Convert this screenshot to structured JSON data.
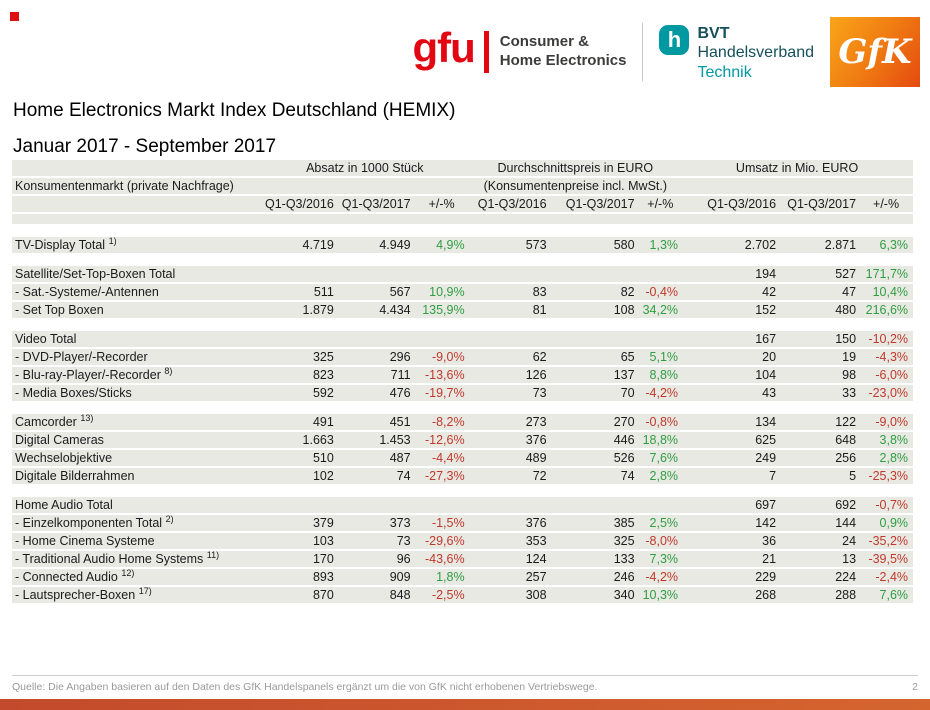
{
  "logos": {
    "gfu": {
      "name": "gfu",
      "line1": "Consumer &",
      "line2": "Home Electronics"
    },
    "bvt": {
      "icon": "h",
      "line1": "BVT",
      "line2": "Handelsverband",
      "line3": "Technik"
    },
    "gfk": {
      "name": "GfK"
    }
  },
  "title": "Home Electronics Markt Index Deutschland (HEMIX)",
  "subtitle": "Januar 2017 - September 2017",
  "colors": {
    "positive": "#2f9e41",
    "negative": "#c0392b",
    "band": "#e9e9e4",
    "gfu_red": "#e30613",
    "bvt_teal": "#0098a1",
    "gfk_orange": "#ee7011",
    "bottom_bar": "#c94f2d"
  },
  "table": {
    "market_label": "Konsumentenmarkt (private Nachfrage)",
    "groups": [
      "Absatz in 1000 Stück",
      "Durchschnittspreis in EURO",
      "Umsatz in Mio. EURO"
    ],
    "preis_note": "(Konsumentenpreise incl. MwSt.)",
    "col_headers": [
      "Q1-Q3/2016",
      "Q1-Q3/2017",
      "+/-%"
    ],
    "rows": [
      {
        "type": "empty"
      },
      {
        "type": "spacer"
      },
      {
        "label": "TV-Display Total",
        "sup": "1)",
        "values": [
          "4.719",
          "4.949",
          "4,9%",
          "573",
          "580",
          "1,3%",
          "2.702",
          "2.871",
          "6,3%"
        ]
      },
      {
        "type": "spacer"
      },
      {
        "label": "Satellite/Set-Top-Boxen Total",
        "values": [
          "",
          "",
          "",
          "",
          "",
          "",
          "194",
          "527",
          "171,7%"
        ]
      },
      {
        "label": "- Sat.-Systeme/-Antennen",
        "values": [
          "511",
          "567",
          "10,9%",
          "83",
          "82",
          "-0,4%",
          "42",
          "47",
          "10,4%"
        ]
      },
      {
        "label": "- Set Top Boxen",
        "values": [
          "1.879",
          "4.434",
          "135,9%",
          "81",
          "108",
          "34,2%",
          "152",
          "480",
          "216,6%"
        ]
      },
      {
        "type": "spacer"
      },
      {
        "label": "Video Total",
        "values": [
          "",
          "",
          "",
          "",
          "",
          "",
          "167",
          "150",
          "-10,2%"
        ]
      },
      {
        "label": "- DVD-Player/-Recorder",
        "values": [
          "325",
          "296",
          "-9,0%",
          "62",
          "65",
          "5,1%",
          "20",
          "19",
          "-4,3%"
        ]
      },
      {
        "label": "- Blu-ray-Player/-Recorder",
        "sup": "8)",
        "values": [
          "823",
          "711",
          "-13,6%",
          "126",
          "137",
          "8,8%",
          "104",
          "98",
          "-6,0%"
        ]
      },
      {
        "label": "- Media Boxes/Sticks",
        "values": [
          "592",
          "476",
          "-19,7%",
          "73",
          "70",
          "-4,2%",
          "43",
          "33",
          "-23,0%"
        ]
      },
      {
        "type": "spacer"
      },
      {
        "label": "Camcorder",
        "sup": "13)",
        "values": [
          "491",
          "451",
          "-8,2%",
          "273",
          "270",
          "-0,8%",
          "134",
          "122",
          "-9,0%"
        ]
      },
      {
        "label": "Digital Cameras",
        "values": [
          "1.663",
          "1.453",
          "-12,6%",
          "376",
          "446",
          "18,8%",
          "625",
          "648",
          "3,8%"
        ]
      },
      {
        "label": "Wechselobjektive",
        "values": [
          "510",
          "487",
          "-4,4%",
          "489",
          "526",
          "7,6%",
          "249",
          "256",
          "2,8%"
        ]
      },
      {
        "label": "Digitale Bilderrahmen",
        "values": [
          "102",
          "74",
          "-27,3%",
          "72",
          "74",
          "2,8%",
          "7",
          "5",
          "-25,3%"
        ]
      },
      {
        "type": "spacer"
      },
      {
        "label": "Home Audio Total",
        "values": [
          "",
          "",
          "",
          "",
          "",
          "",
          "697",
          "692",
          "-0,7%"
        ]
      },
      {
        "label": "- Einzelkomponenten Total",
        "sup": "2)",
        "values": [
          "379",
          "373",
          "-1,5%",
          "376",
          "385",
          "2,5%",
          "142",
          "144",
          "0,9%"
        ]
      },
      {
        "label": "- Home Cinema Systeme",
        "values": [
          "103",
          "73",
          "-29,6%",
          "353",
          "325",
          "-8,0%",
          "36",
          "24",
          "-35,2%"
        ]
      },
      {
        "label": "- Traditional Audio Home Systems",
        "sup": "11)",
        "values": [
          "170",
          "96",
          "-43,6%",
          "124",
          "133",
          "7,3%",
          "21",
          "13",
          "-39,5%"
        ]
      },
      {
        "label": "- Connected Audio",
        "sup": "12)",
        "values": [
          "893",
          "909",
          "1,8%",
          "257",
          "246",
          "-4,2%",
          "229",
          "224",
          "-2,4%"
        ]
      },
      {
        "label": "- Lautsprecher-Boxen",
        "sup": "17)",
        "values": [
          "870",
          "848",
          "-2,5%",
          "308",
          "340",
          "10,3%",
          "268",
          "288",
          "7,6%"
        ]
      }
    ]
  },
  "footer": {
    "source": "Quelle: Die Angaben basieren auf den Daten des GfK Handelspanels ergänzt um die von GfK nicht erhobenen Vertriebswege.",
    "page": "2"
  }
}
